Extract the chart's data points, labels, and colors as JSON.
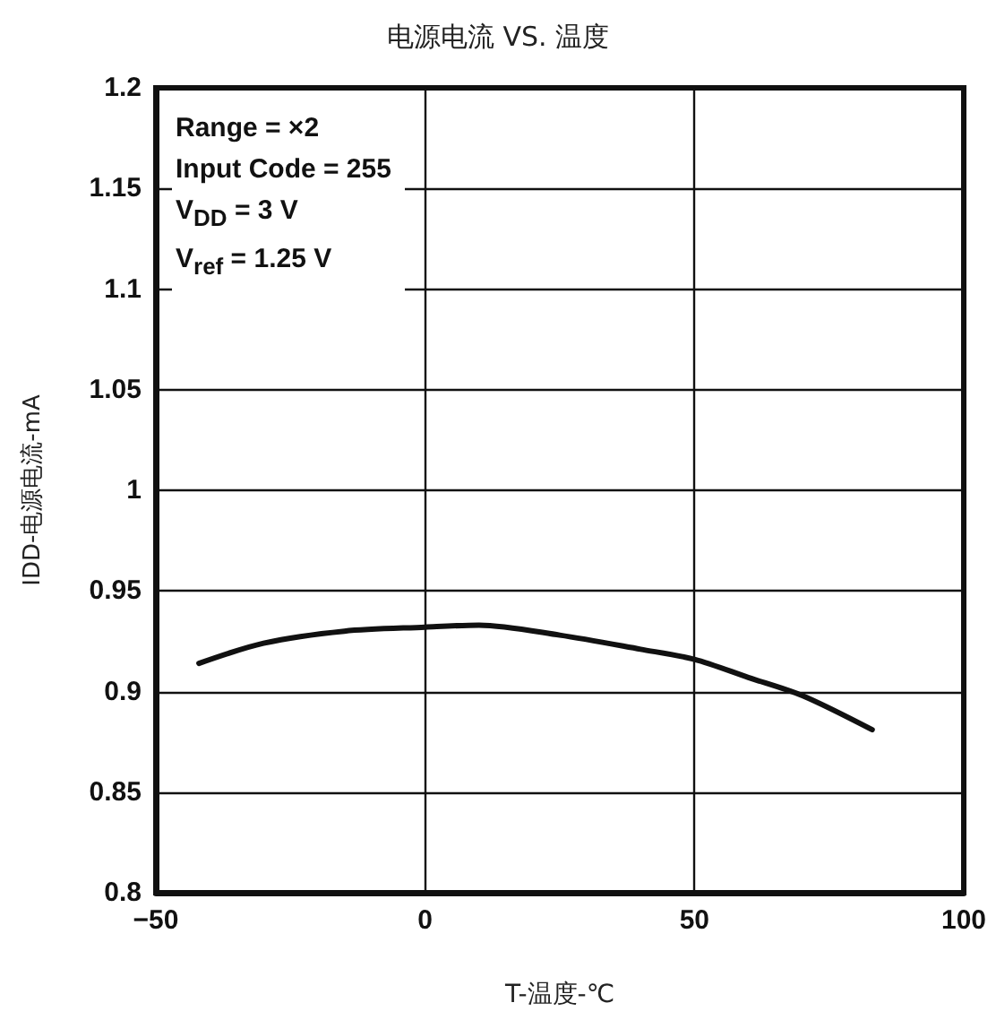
{
  "chart_data": {
    "type": "line",
    "title": "电源电流 VS. 温度",
    "xlabel": "T-温度-℃",
    "ylabel": "IDD-电源电流-mA",
    "annotations": [
      "Range = ×2",
      "Input Code = 255",
      "V$_{DD}$ = 3 V",
      "V$_{ref}$ = 1.25 V"
    ],
    "series": [
      {
        "color": "#111111",
        "x": [
          -42,
          -30,
          -15,
          0,
          10,
          25,
          40,
          50,
          60,
          70,
          83
        ],
        "values": [
          0.914,
          0.924,
          0.93,
          0.932,
          0.933,
          0.928,
          0.921,
          0.916,
          0.907,
          0.898,
          0.881
        ]
      }
    ],
    "xlim": [
      -50,
      100
    ],
    "xticks": [
      {
        "value": -50,
        "label": "−50"
      },
      0,
      50,
      100
    ],
    "ylim": [
      0.8,
      1.2
    ],
    "yticks": [
      0.8,
      0.85,
      0.9,
      0.95,
      1,
      1.05,
      1.1,
      1.15,
      1.2
    ],
    "grid": true,
    "marker": "none",
    "line_style": "solid"
  }
}
